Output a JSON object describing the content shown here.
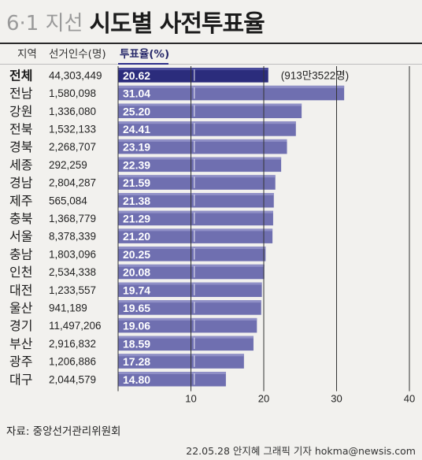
{
  "header": {
    "subtitle": "6·1 지선",
    "title": "시도별 사전투표율"
  },
  "columns": {
    "region": "지역",
    "voters": "선거인수(명)",
    "rate": "투표율(%)"
  },
  "total_note": "(913만3522명)",
  "footer": {
    "source": "자료: 중앙선거관리위원회",
    "credit": "22.05.28 안지혜 그래픽 기자 hokma@newsis.com"
  },
  "colors": {
    "total_bar": "#2b2c7c",
    "bar": "#6f6fb0",
    "bar_highlight": "#8f8fc6",
    "grid": "#333333"
  },
  "chart_data": {
    "type": "bar",
    "orientation": "horizontal",
    "xlim": [
      0,
      40
    ],
    "xticks": [
      10,
      20,
      30,
      40
    ],
    "regions": [
      "전체",
      "전남",
      "강원",
      "전북",
      "경북",
      "세종",
      "경남",
      "제주",
      "충북",
      "서울",
      "충남",
      "인천",
      "대전",
      "울산",
      "경기",
      "부산",
      "광주",
      "대구"
    ],
    "voters": [
      "44,303,449",
      "1,580,098",
      "1,336,080",
      "1,532,133",
      "2,268,707",
      "292,259",
      "2,804,287",
      "565,084",
      "1,368,779",
      "8,378,339",
      "1,803,096",
      "2,534,338",
      "1,233,557",
      "941,189",
      "11,497,206",
      "2,916,832",
      "1,206,886",
      "2,044,579"
    ],
    "values": [
      20.62,
      31.04,
      25.2,
      24.41,
      23.19,
      22.39,
      21.59,
      21.38,
      21.29,
      21.2,
      20.25,
      20.08,
      19.74,
      19.65,
      19.06,
      18.59,
      17.28,
      14.8
    ],
    "labels": [
      "20.62",
      "31.04",
      "25.20",
      "24.41",
      "23.19",
      "22.39",
      "21.59",
      "21.38",
      "21.29",
      "21.20",
      "20.25",
      "20.08",
      "19.74",
      "19.65",
      "19.06",
      "18.59",
      "17.28",
      "14.80"
    ]
  }
}
